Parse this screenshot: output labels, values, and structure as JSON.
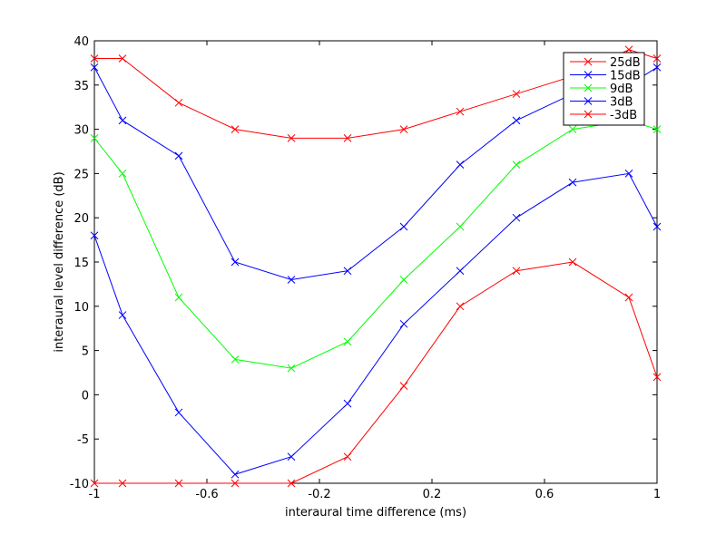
{
  "chart_data": {
    "type": "line",
    "xlabel": "interaural time difference (ms)",
    "ylabel": "interaural level difference (dB)",
    "xlim": [
      -1,
      1
    ],
    "ylim": [
      -10,
      40
    ],
    "xticks": [
      -1,
      -0.6,
      -0.2,
      0.2,
      0.6,
      1
    ],
    "yticks": [
      -10,
      -5,
      0,
      5,
      10,
      15,
      20,
      25,
      30,
      35,
      40
    ],
    "legend": "top-right",
    "grid": false,
    "x": [
      -1,
      -0.9,
      -0.7,
      -0.5,
      -0.3,
      -0.1,
      0.1,
      0.3,
      0.5,
      0.7,
      0.9,
      1
    ],
    "series": [
      {
        "name": "25dB",
        "color": "#ff0000",
        "values": [
          38,
          38,
          33,
          30,
          29,
          29,
          30,
          32,
          34,
          36,
          39,
          38
        ]
      },
      {
        "name": "15dB",
        "color": "#0000ff",
        "values": [
          37,
          31,
          27,
          15,
          13,
          14,
          19,
          26,
          31,
          34,
          35,
          37
        ]
      },
      {
        "name": "9dB",
        "color": "#00ff00",
        "values": [
          29,
          25,
          11,
          4,
          3,
          6,
          13,
          19,
          26,
          30,
          31,
          30
        ]
      },
      {
        "name": "3dB",
        "color": "#0000ff",
        "values": [
          18,
          9,
          -2,
          -9,
          -7,
          -1,
          8,
          14,
          20,
          24,
          25,
          19
        ]
      },
      {
        "name": "-3dB",
        "color": "#ff0000",
        "values": [
          -10,
          -10,
          -10,
          -10,
          -10,
          -7,
          1,
          10,
          14,
          15,
          11,
          2
        ]
      }
    ]
  }
}
